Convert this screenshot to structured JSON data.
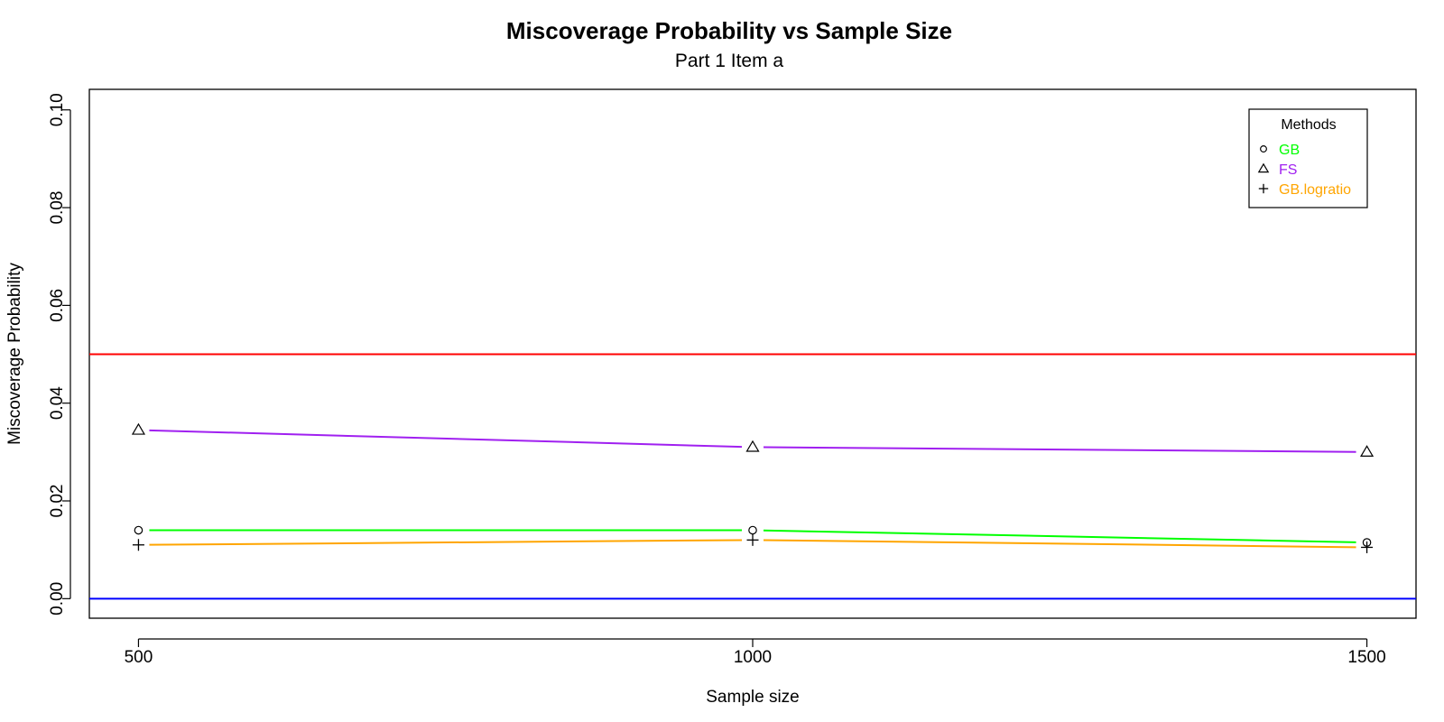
{
  "chart_data": {
    "type": "line",
    "title": "Miscoverage Probability vs Sample Size",
    "subtitle": "Part 1 Item a",
    "xlabel": "Sample size",
    "ylabel": "Miscoverage Probability",
    "x": [
      500,
      1000,
      1500
    ],
    "x_ticks": [
      500,
      1000,
      1500
    ],
    "x_tick_labels": [
      "500",
      "1000",
      "1500"
    ],
    "xlim": [
      460,
      1540
    ],
    "ylim": [
      -0.004,
      0.1042
    ],
    "y_ticks": [
      0,
      0.02,
      0.04,
      0.06,
      0.08,
      0.1
    ],
    "y_tick_labels": [
      "0.00",
      "0.02",
      "0.04",
      "0.06",
      "0.08",
      "0.10"
    ],
    "series": [
      {
        "name": "GB",
        "marker": "circle",
        "color": "#00ff00",
        "values": [
          0.014,
          0.014,
          0.0115
        ]
      },
      {
        "name": "FS",
        "marker": "triangle",
        "color": "#a020f0",
        "values": [
          0.0345,
          0.031,
          0.03
        ]
      },
      {
        "name": "GB.logratio",
        "marker": "plus",
        "color": "#ffa500",
        "values": [
          0.011,
          0.012,
          0.0105
        ]
      }
    ],
    "reference_lines": [
      {
        "y": 0.05,
        "color": "#ff0000"
      },
      {
        "y": 0.0,
        "color": "#0000ff"
      }
    ],
    "legend": {
      "title": "Methods",
      "position": "top-right"
    },
    "grid": false
  }
}
